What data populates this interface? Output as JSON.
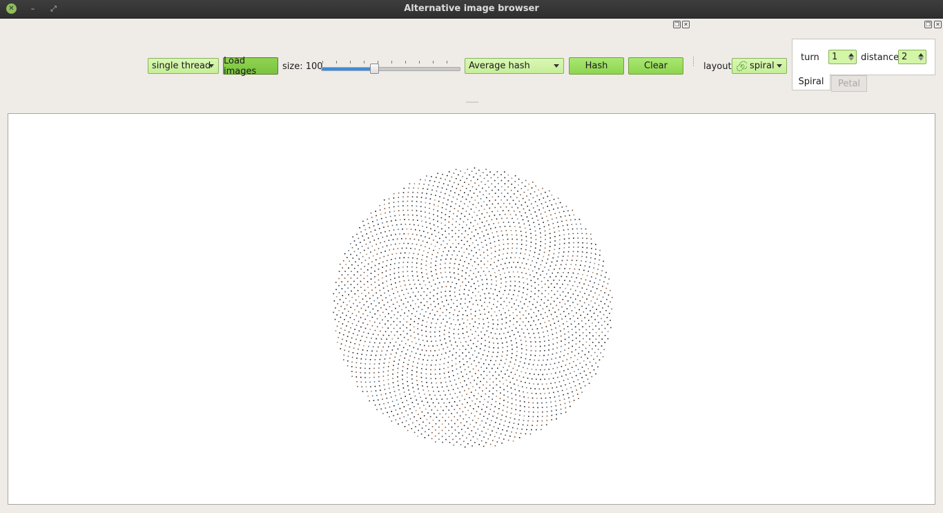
{
  "window": {
    "title": "Alternative image browser"
  },
  "toolbar": {
    "thread_mode": "single thread",
    "load_images_label": "Load images",
    "size_label": "size: 100",
    "size_value": 100,
    "hash_method": "Average hash",
    "hash_label": "Hash",
    "clear_label": "Clear",
    "layout_label": "layout",
    "layout_value": "spiral"
  },
  "spiral_settings": {
    "turn_label": "turn",
    "turn_value": "1",
    "distance_label": "distance",
    "distance_value": "2",
    "tabs": [
      "Spiral",
      "Petal"
    ],
    "active_tab": "Spiral"
  },
  "colors": {
    "accent": "#8dd54f",
    "combo_bg": "#c7ee99",
    "slider_fill": "#3a8dde",
    "titlebar": "#2f2f2f"
  },
  "icons": [
    "close-icon",
    "minimize-icon",
    "maximize-icon",
    "spiral-layout-icon",
    "dock-float-icon",
    "dock-close-icon"
  ]
}
